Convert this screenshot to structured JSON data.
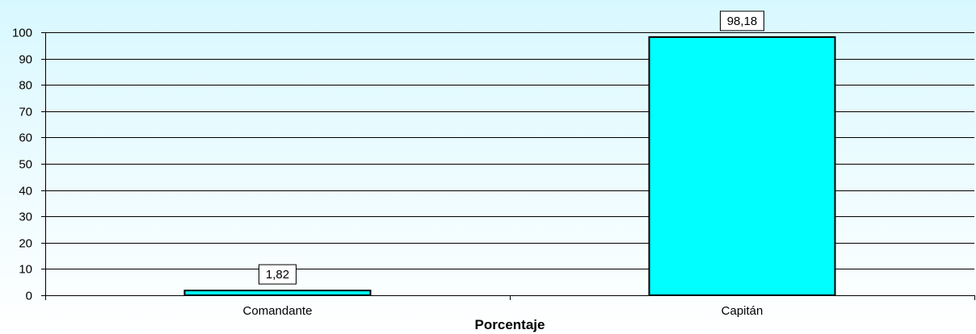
{
  "chart_data": {
    "type": "bar",
    "categories": [
      "Comandante",
      "Capitán"
    ],
    "values": [
      1.82,
      98.18
    ],
    "data_labels": [
      "1,82",
      "98,18"
    ],
    "xlabel": "Porcentaje",
    "ylabel": "",
    "ylim": [
      0,
      100
    ],
    "yticks": [
      0,
      10,
      20,
      30,
      40,
      50,
      60,
      70,
      80,
      90,
      100
    ],
    "grid": true,
    "legend": "none",
    "colors": {
      "bar_fill": "#00ffff",
      "bar_stroke": "#000000",
      "gridline": "#000000",
      "background_top": "#d8f8ff"
    }
  }
}
